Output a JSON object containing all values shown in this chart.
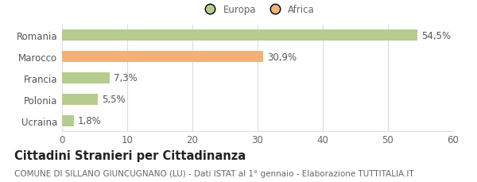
{
  "categories": [
    "Ucraina",
    "Polonia",
    "Francia",
    "Marocco",
    "Romania"
  ],
  "values": [
    1.8,
    5.5,
    7.3,
    30.9,
    54.5
  ],
  "labels": [
    "1,8%",
    "5,5%",
    "7,3%",
    "30,9%",
    "54,5%"
  ],
  "bar_colors": [
    "#b5cc8e",
    "#b5cc8e",
    "#b5cc8e",
    "#f0b27a",
    "#b5cc8e"
  ],
  "xlim": [
    0,
    60
  ],
  "xticks": [
    0,
    10,
    20,
    30,
    40,
    50,
    60
  ],
  "title": "Cittadini Stranieri per Cittadinanza",
  "subtitle": "COMUNE DI SILLANO GIUNCUGNANO (LU) - Dati ISTAT al 1° gennaio - Elaborazione TUTTITALIA.IT",
  "legend_labels": [
    "Europa",
    "Africa"
  ],
  "legend_colors": [
    "#b5cc8e",
    "#f0b27a"
  ],
  "bar_height": 0.52,
  "background_color": "#ffffff",
  "grid_color": "#dddddd",
  "label_fontsize": 8.5,
  "tick_fontsize": 8.5,
  "title_fontsize": 10.5,
  "subtitle_fontsize": 7.5
}
